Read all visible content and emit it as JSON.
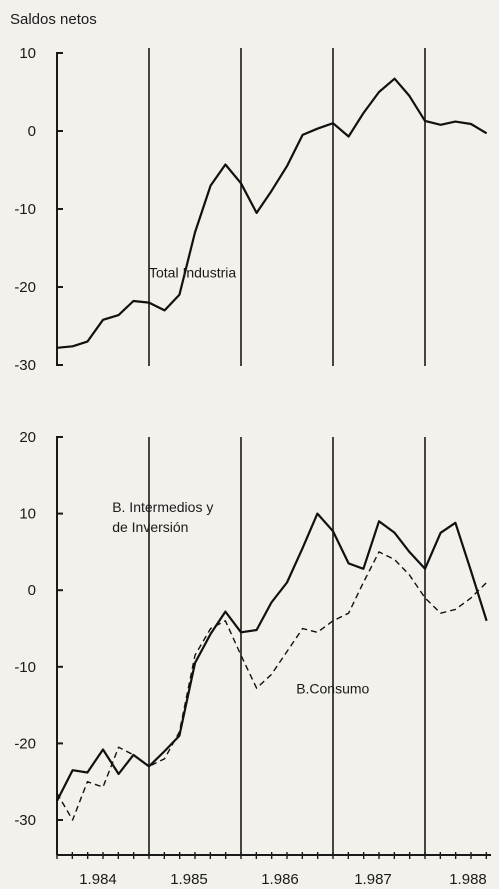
{
  "figure": {
    "ylabel": "Saldos netos",
    "x_labels": [
      "1.984",
      "1.985",
      "1.986",
      "1.987",
      "1.988"
    ]
  },
  "chart_data": [
    {
      "type": "line",
      "ylim": [
        -30,
        10
      ],
      "yticks": [
        -30,
        -20,
        -10,
        0,
        10
      ],
      "ytick_labels": [
        "-30",
        "-20",
        "-10",
        "0",
        "10"
      ],
      "grid": false,
      "year_dividers": [
        1985,
        1986,
        1987,
        1988
      ],
      "annotations": [
        {
          "text": "Total   Industria",
          "x": 1985.0,
          "y": -18.8
        }
      ],
      "x": [
        1984.0,
        1984.17,
        1984.33,
        1984.5,
        1984.67,
        1984.83,
        1985.0,
        1985.17,
        1985.33,
        1985.5,
        1985.67,
        1985.83,
        1986.0,
        1986.17,
        1986.33,
        1986.5,
        1986.67,
        1986.83,
        1987.0,
        1987.17,
        1987.33,
        1987.5,
        1987.67,
        1987.83,
        1988.0,
        1988.17,
        1988.33,
        1988.5,
        1988.67
      ],
      "series": [
        {
          "line_style": "solid",
          "values": [
            -27.8,
            -27.6,
            -27.0,
            -24.2,
            -23.6,
            -21.8,
            -22.0,
            -23.0,
            -21.0,
            -13.0,
            -7.0,
            -4.3,
            -6.7,
            -10.5,
            -7.7,
            -4.5,
            -0.5,
            0.3,
            1.0,
            -0.7,
            2.3,
            5.0,
            6.7,
            4.5,
            1.3,
            0.8,
            1.2,
            0.9,
            -0.3
          ]
        }
      ]
    },
    {
      "type": "line",
      "ylim": [
        -30,
        20
      ],
      "yticks": [
        -30,
        -20,
        -10,
        0,
        10,
        20
      ],
      "ytick_labels": [
        "-30",
        "-20",
        "-10",
        "0",
        "10",
        "20"
      ],
      "grid": false,
      "year_dividers": [
        1985,
        1986,
        1987,
        1988
      ],
      "annotations": [
        {
          "text": "B. Intermedios y",
          "x": 1984.6,
          "y": 10.2
        },
        {
          "text": "de Inversión",
          "x": 1984.6,
          "y": 7.6
        },
        {
          "text": "B.Consumo",
          "x": 1986.6,
          "y": -13.5
        }
      ],
      "x": [
        1984.0,
        1984.17,
        1984.33,
        1984.5,
        1984.67,
        1984.83,
        1985.0,
        1985.17,
        1985.33,
        1985.5,
        1985.67,
        1985.83,
        1986.0,
        1986.17,
        1986.33,
        1986.5,
        1986.67,
        1986.83,
        1987.0,
        1987.17,
        1987.33,
        1987.5,
        1987.67,
        1987.83,
        1988.0,
        1988.17,
        1988.33,
        1988.5,
        1988.67
      ],
      "series": [
        {
          "line_style": "solid",
          "values": [
            -27.5,
            -23.5,
            -23.8,
            -20.8,
            -24.0,
            -21.5,
            -23.0,
            -21.0,
            -19.0,
            -9.5,
            -5.7,
            -2.8,
            -5.5,
            -5.2,
            -1.6,
            1.0,
            5.5,
            10.0,
            7.7,
            3.5,
            2.8,
            9.0,
            7.5,
            5.0,
            2.8,
            7.5,
            8.8,
            2.5,
            -4.0
          ]
        },
        {
          "line_style": "dashed",
          "values": [
            -26.5,
            -30.0,
            -25.0,
            -25.7,
            -20.5,
            -21.5,
            -23.0,
            -22.0,
            -18.5,
            -8.5,
            -5.0,
            -4.0,
            -8.5,
            -12.8,
            -11.0,
            -8.0,
            -5.0,
            -5.5,
            -4.0,
            -3.0,
            1.0,
            5.0,
            4.0,
            2.0,
            -1.0,
            -3.0,
            -2.5,
            -1.0,
            1.0
          ]
        }
      ]
    }
  ]
}
